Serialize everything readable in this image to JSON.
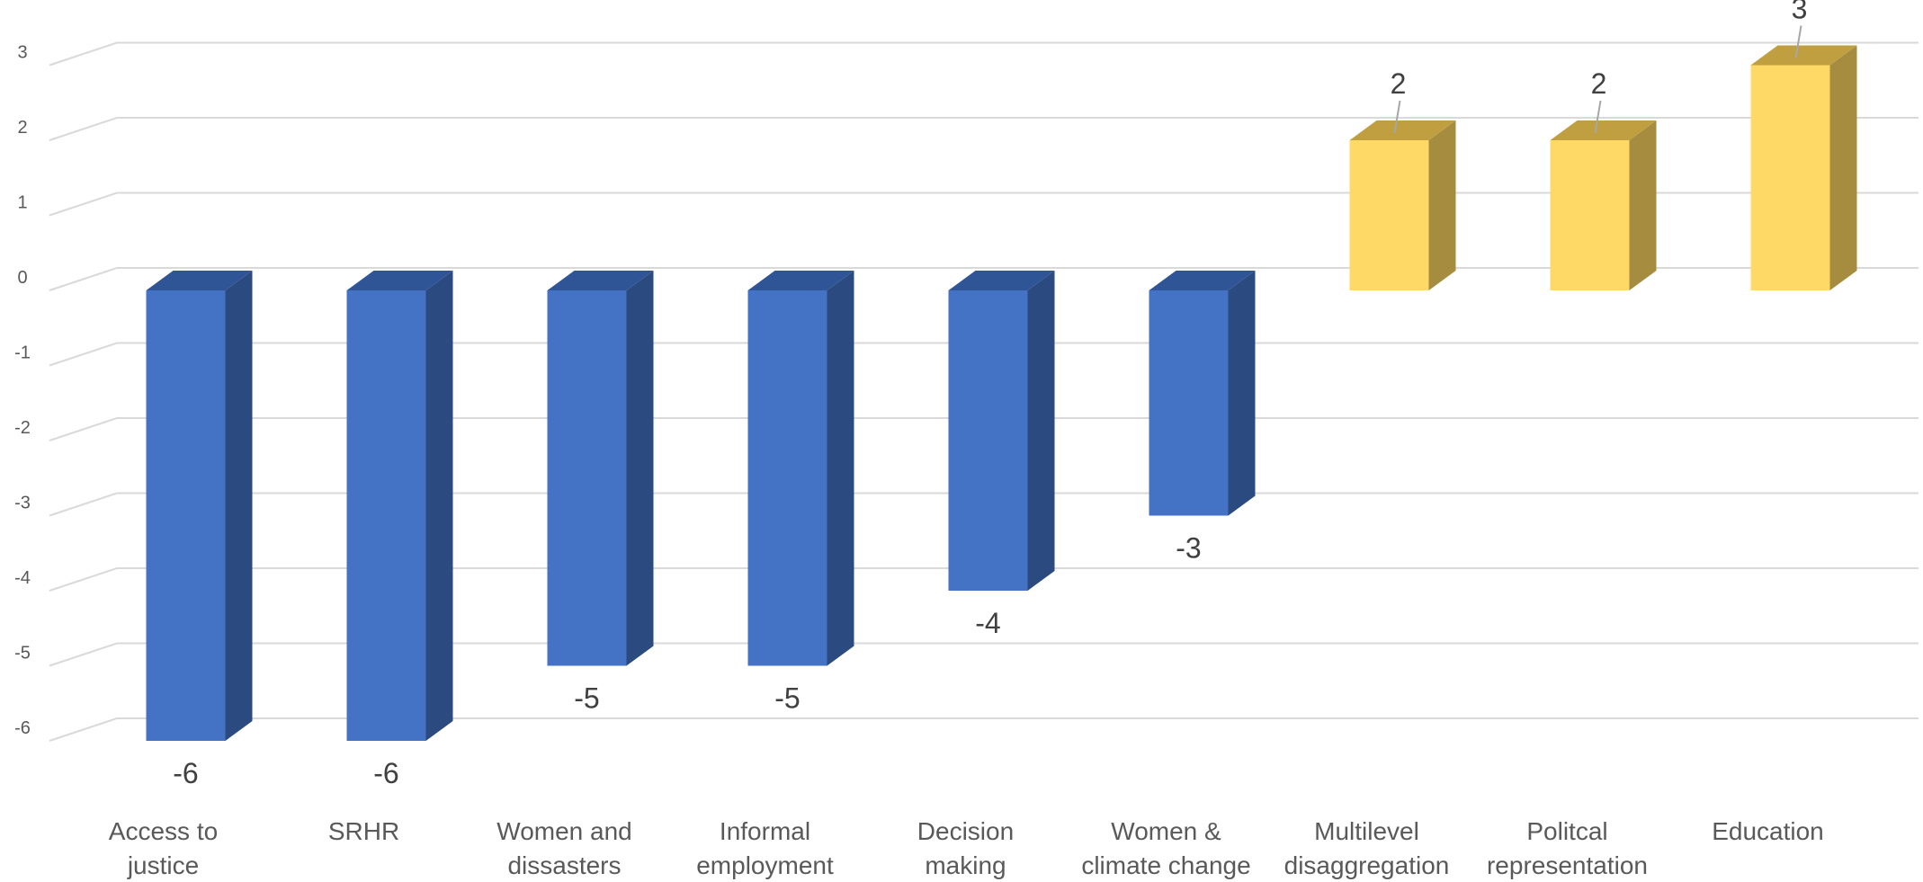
{
  "chart_data": {
    "type": "bar",
    "categories": [
      [
        "Access to",
        "justice"
      ],
      [
        "SRHR"
      ],
      [
        "Women and",
        "dissasters"
      ],
      [
        "Informal",
        "employment"
      ],
      [
        "Decision",
        "making"
      ],
      [
        "Women &",
        "climate change"
      ],
      [
        "Multilevel",
        "disaggregation"
      ],
      [
        "Politcal",
        "representation"
      ],
      [
        "Education"
      ]
    ],
    "values": [
      -6,
      -6,
      -5,
      -5,
      -4,
      -3,
      2,
      2,
      3
    ],
    "ylim": [
      -6,
      3
    ],
    "yticks": [
      3,
      2,
      1,
      0,
      -1,
      -2,
      -3,
      -4,
      -5,
      -6
    ],
    "grid": true,
    "style": "3d-column",
    "colors": {
      "negative_front": "#4472C4",
      "negative_side": "#2B4A80",
      "negative_top": "#2F5597",
      "positive_front": "#FFD966",
      "positive_side": "#A68C3F",
      "positive_top": "#BF9F40",
      "grid": "#D9D9D9",
      "leader": "#A6A6A6"
    }
  }
}
